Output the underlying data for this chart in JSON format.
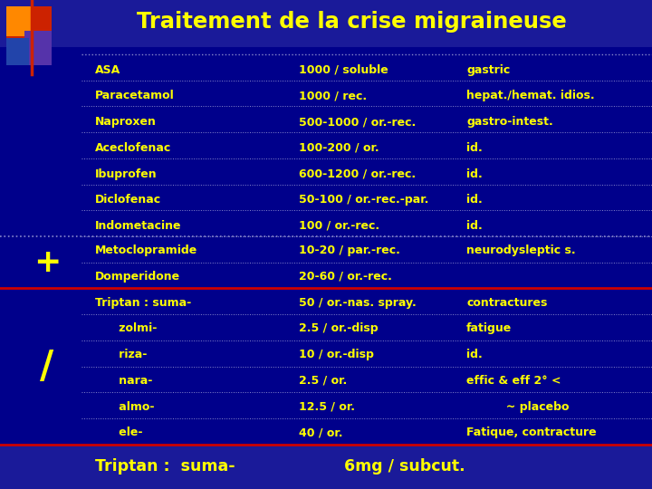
{
  "title": "Traitement de la crise migraineuse",
  "title_color": "#FFFF00",
  "bg_color": "#00008B",
  "text_color": "#FFFF00",
  "rows": [
    {
      "col1": "ASA",
      "col2": "1000 / soluble",
      "col3": "gastric"
    },
    {
      "col1": "Paracetamol",
      "col2": "1000 / rec.",
      "col3": "hepat./hemat. idios."
    },
    {
      "col1": "Naproxen",
      "col2": "500-1000 / or.-rec.",
      "col3": "gastro-intest."
    },
    {
      "col1": "Aceclofenac",
      "col2": "100-200 / or.",
      "col3": "id."
    },
    {
      "col1": "Ibuprofen",
      "col2": "600-1200 / or.-rec.",
      "col3": "id."
    },
    {
      "col1": "Diclofenac",
      "col2": "50-100 / or.-rec.-par.",
      "col3": "id."
    },
    {
      "col1": "Indometacine",
      "col2": "100 / or.-rec.",
      "col3": "id."
    }
  ],
  "plus_rows": [
    {
      "col1": "Metoclopramide",
      "col2": "10-20 / par.-rec.",
      "col3": "neurodysleptic s."
    },
    {
      "col1": "Domperidone",
      "col2": "20-60 / or.-rec.",
      "col3": ""
    }
  ],
  "slash_rows": [
    {
      "col1": "Triptan : suma-",
      "col2": "50 / or.-nas. spray.",
      "col3": "contractures"
    },
    {
      "col1": "      zolmi-",
      "col2": "2.5 / or.-disp",
      "col3": "fatigue"
    },
    {
      "col1": "      riza-",
      "col2": "10 / or.-disp",
      "col3": "id."
    },
    {
      "col1": "      nara-",
      "col2": "2.5 / or.",
      "col3": "effic & eff 2° <"
    },
    {
      "col1": "      almo-",
      "col2": "12.5 / or.",
      "col3": "          ~ placebo"
    },
    {
      "col1": "      ele-",
      "col2": "40 / or.",
      "col3": "Fatique, contracture"
    }
  ],
  "footer_col1": "Triptan :  suma-",
  "footer_col2": "6mg / subcut.",
  "title_bar_color": "#1a1a99",
  "footer_bar_color": "#1a1a99",
  "sep_color": "#8888CC",
  "red_line_color": "#CC0000",
  "logo_colors": {
    "red": "#CC2200",
    "orange": "#FF8800",
    "purple": "#5533AA",
    "blue": "#2244AA"
  }
}
